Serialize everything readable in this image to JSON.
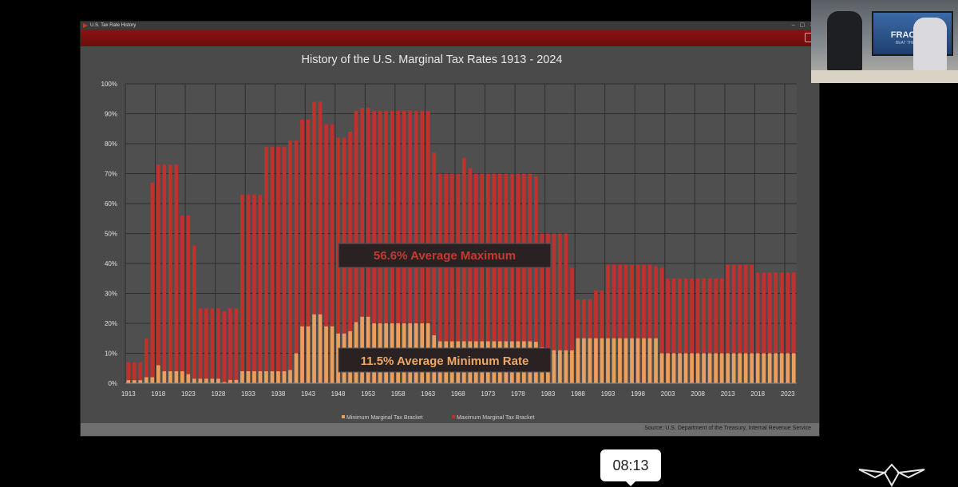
{
  "window": {
    "title": "U.S. Tax Rate History"
  },
  "colors": {
    "max_series": "#c0302c",
    "min_series": "#e9a05e",
    "max_callout_text": "#c63a32",
    "min_callout_text": "#f0a866",
    "plot_background": "#4f4f4f",
    "ribbon": "#8c1212"
  },
  "chart_data": {
    "type": "bar",
    "title": "History of the U.S. Marginal Tax Rates 1913 - 2024",
    "xlabel": "",
    "ylabel": "",
    "ylim": [
      0,
      100
    ],
    "y_tick_labels": [
      "0%",
      "10%",
      "20%",
      "30%",
      "40%",
      "50%",
      "60%",
      "70%",
      "80%",
      "90%",
      "100%"
    ],
    "x_tick_labels": [
      "1913",
      "1918",
      "1923",
      "1928",
      "1933",
      "1938",
      "1943",
      "1948",
      "1953",
      "1958",
      "1963",
      "1968",
      "1973",
      "1978",
      "1983",
      "1988",
      "1993",
      "1998",
      "2003",
      "2008",
      "2013",
      "2018",
      "2023"
    ],
    "grid": true,
    "legend_position": "bottom",
    "years": [
      1913,
      1914,
      1915,
      1916,
      1917,
      1918,
      1919,
      1920,
      1921,
      1922,
      1923,
      1924,
      1925,
      1926,
      1927,
      1928,
      1929,
      1930,
      1931,
      1932,
      1933,
      1934,
      1935,
      1936,
      1937,
      1938,
      1939,
      1940,
      1941,
      1942,
      1943,
      1944,
      1945,
      1946,
      1947,
      1948,
      1949,
      1950,
      1951,
      1952,
      1953,
      1954,
      1955,
      1956,
      1957,
      1958,
      1959,
      1960,
      1961,
      1962,
      1963,
      1964,
      1965,
      1966,
      1967,
      1968,
      1969,
      1970,
      1971,
      1972,
      1973,
      1974,
      1975,
      1976,
      1977,
      1978,
      1979,
      1980,
      1981,
      1982,
      1983,
      1984,
      1985,
      1986,
      1987,
      1988,
      1989,
      1990,
      1991,
      1992,
      1993,
      1994,
      1995,
      1996,
      1997,
      1998,
      1999,
      2000,
      2001,
      2002,
      2003,
      2004,
      2005,
      2006,
      2007,
      2008,
      2009,
      2010,
      2011,
      2012,
      2013,
      2014,
      2015,
      2016,
      2017,
      2018,
      2019,
      2020,
      2021,
      2022,
      2023,
      2024
    ],
    "series": [
      {
        "name": "Maximum Marginal Tax Bracket",
        "values": [
          7,
          7,
          7,
          15,
          67,
          73,
          73,
          73,
          73,
          56,
          56,
          46,
          25,
          25,
          25,
          25,
          24,
          25,
          25,
          63,
          63,
          63,
          63,
          79,
          79,
          79,
          79,
          81,
          81,
          88,
          88,
          94,
          94,
          86.5,
          86.5,
          82,
          82,
          84,
          91,
          92,
          92,
          91,
          91,
          91,
          91,
          91,
          91,
          91,
          91,
          91,
          91,
          77,
          70,
          70,
          70,
          70,
          75.3,
          71.8,
          70,
          70,
          70,
          70,
          70,
          70,
          70,
          70,
          70,
          70,
          69.1,
          50,
          50,
          50,
          50,
          50,
          38.5,
          28,
          28,
          28,
          31,
          31,
          39.6,
          39.6,
          39.6,
          39.6,
          39.6,
          39.6,
          39.6,
          39.6,
          39.1,
          38.6,
          35,
          35,
          35,
          35,
          35,
          35,
          35,
          35,
          35,
          35,
          39.6,
          39.6,
          39.6,
          39.6,
          39.6,
          37,
          37,
          37,
          37,
          37,
          37,
          37
        ]
      },
      {
        "name": "Minimum Marginal Tax Bracket",
        "values": [
          1,
          1,
          1,
          2,
          2,
          6,
          4,
          4,
          4,
          4,
          3,
          1.5,
          1.5,
          1.5,
          1.5,
          1.5,
          0.4,
          1.1,
          1.1,
          4,
          4,
          4,
          4,
          4,
          4,
          4,
          4,
          4.4,
          10,
          19,
          19,
          23,
          23,
          19,
          19,
          16.6,
          16.6,
          17.4,
          20.4,
          22.2,
          22.2,
          20,
          20,
          20,
          20,
          20,
          20,
          20,
          20,
          20,
          20,
          16,
          14,
          14,
          14,
          14,
          14,
          14,
          14,
          14,
          14,
          14,
          14,
          14,
          14,
          14,
          14,
          14,
          13.825,
          12,
          11,
          11,
          11,
          11,
          11,
          15,
          15,
          15,
          15,
          15,
          15,
          15,
          15,
          15,
          15,
          15,
          15,
          15,
          15,
          10,
          10,
          10,
          10,
          10,
          10,
          10,
          10,
          10,
          10,
          10,
          10,
          10,
          10,
          10,
          10,
          10,
          10,
          10,
          10,
          10,
          10,
          10
        ]
      }
    ],
    "annotations": [
      "56.6% Average Maximum",
      "11.5% Average Minimum Rate"
    ],
    "source": "Source: U.S. Department of the Treasury, Internal Revenue Service"
  },
  "overlay": {
    "time_badge": "08:13",
    "webcam_panel_logo": "FRACTUM",
    "webcam_panel_subtitle": "BEAT THE BANKS"
  }
}
